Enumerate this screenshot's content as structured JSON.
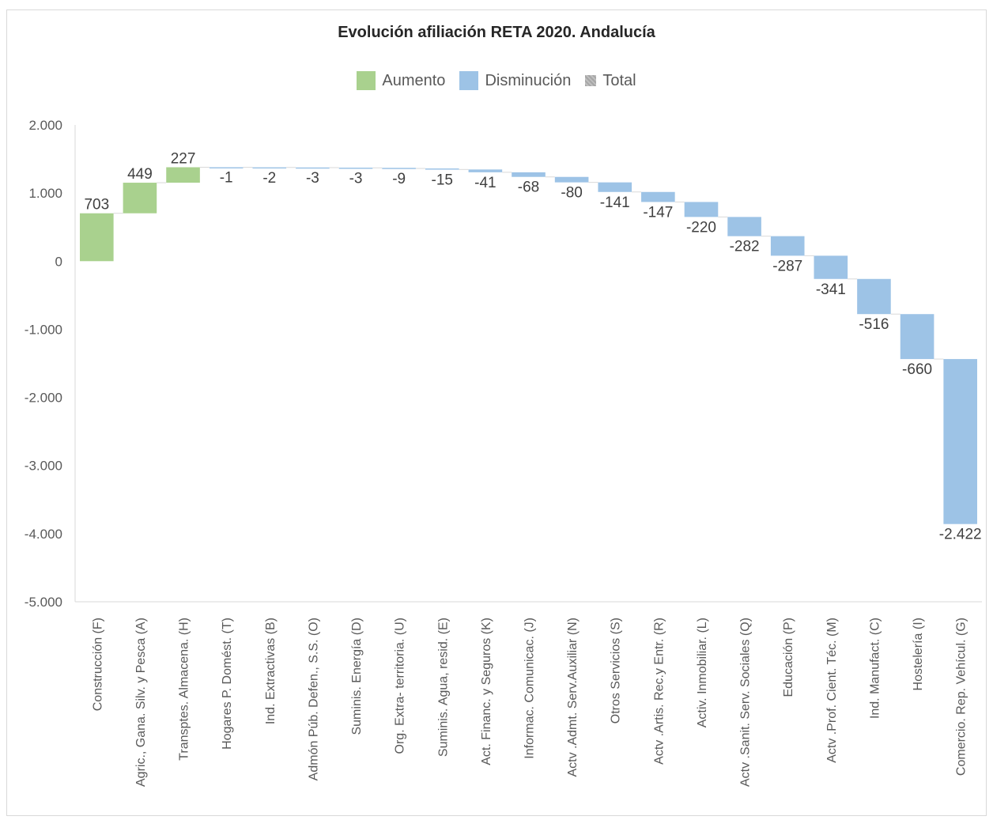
{
  "chart_data": {
    "type": "bar",
    "subtype": "waterfall",
    "title": "Evolución afiliación RETA 2020. Andalucía",
    "legend": {
      "position": "top",
      "entries": [
        {
          "name": "Aumento",
          "color": "#a9d18e"
        },
        {
          "name": "Disminución",
          "color": "#9dc3e6"
        },
        {
          "name": "Total",
          "color": "#a6a6a6"
        }
      ]
    },
    "categories": [
      "Construcción (F)",
      "Agric., Gana. Silv. y Pesca (A)",
      "Transptes. Almacena. (H)",
      "Hogares P. Domést. (T)",
      "Ind. Extractivas (B)",
      "Admón Púb. Defen., S.S. (O)",
      "Suminis. Energía (D)",
      "Org. Extra- territoria. (U)",
      "Suminis. Agua, resid. (E)",
      "Act. Financ. y Seguros (K)",
      "Informac. Comunicac. (J)",
      "Actv .Admt. Serv.Auxiliar (N)",
      "Otros Servicios (S)",
      "Actv .Artis. Rec.y Entr. (R)",
      "Activ. Inmobiliar. (L)",
      "Actv .Sanit. Serv. Sociales (Q)",
      "Educación (P)",
      "Actv .Prof. Cient. Téc. (M)",
      "Ind. Manufact. (C)",
      "Hostelería (I)",
      "Comercio. Rep. Vehícul. (G)"
    ],
    "values": [
      703,
      449,
      227,
      -1,
      -2,
      -3,
      -3,
      -9,
      -15,
      -41,
      -68,
      -80,
      -141,
      -147,
      -220,
      -282,
      -287,
      -341,
      -516,
      -660,
      -2422
    ],
    "value_labels": [
      "703",
      "449",
      "227",
      "-1",
      "-2",
      "-3",
      "-3",
      "-9",
      "-15",
      "-41",
      "-68",
      "-80",
      "-141",
      "-147",
      "-220",
      "-282",
      "-287",
      "-341",
      "-516",
      "-660",
      "-2.422"
    ],
    "ylim": [
      -5000,
      2000
    ],
    "yticks": [
      2000,
      1000,
      0,
      -1000,
      -2000,
      -3000,
      -4000,
      -5000
    ],
    "ytick_labels": [
      "2.000",
      "1.000",
      "0",
      "-1.000",
      "-2.000",
      "-3.000",
      "-4.000",
      "-5.000"
    ],
    "grid": false,
    "colors": {
      "increase": "#a9d18e",
      "decrease": "#9dc3e6",
      "connector": "#d9d9d9",
      "axis": "#d9d9d9"
    }
  }
}
